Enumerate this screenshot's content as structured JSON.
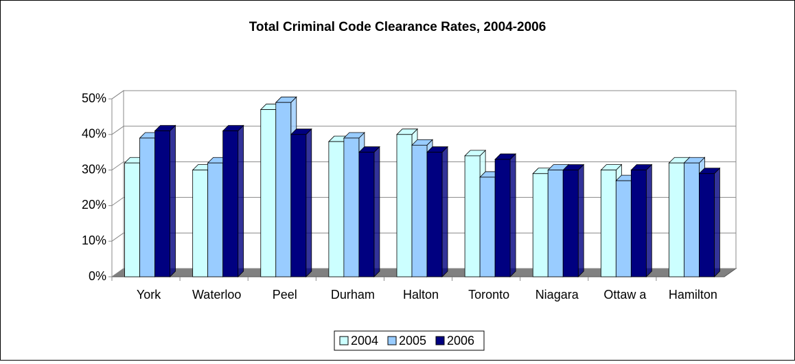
{
  "chart_data": {
    "type": "bar3d",
    "title": "Total Criminal Code Clearance Rates, 2004-2006",
    "categories": [
      "York",
      "Waterloo",
      "Peel",
      "Durham",
      "Halton",
      "Toronto",
      "Niagara",
      "Ottaw a",
      "Hamilton"
    ],
    "series": [
      {
        "name": "2004",
        "color": "#ccffff",
        "values": [
          32,
          30,
          47,
          38,
          40,
          34,
          29,
          30,
          32
        ]
      },
      {
        "name": "2005",
        "color": "#99ccff",
        "values": [
          39,
          32,
          49,
          39,
          37,
          28,
          30,
          27,
          32
        ]
      },
      {
        "name": "2006",
        "color": "#000080",
        "values": [
          41,
          41,
          40,
          35,
          35,
          33,
          30,
          30,
          29
        ]
      }
    ],
    "ylim": [
      0,
      50
    ],
    "yticks": [
      {
        "value": 0,
        "label": "0%"
      },
      {
        "value": 10,
        "label": "10%"
      },
      {
        "value": 20,
        "label": "20%"
      },
      {
        "value": 30,
        "label": "30%"
      },
      {
        "value": 40,
        "label": "40%"
      },
      {
        "value": 50,
        "label": "50%"
      }
    ],
    "grid": true,
    "legend": "bottom"
  }
}
